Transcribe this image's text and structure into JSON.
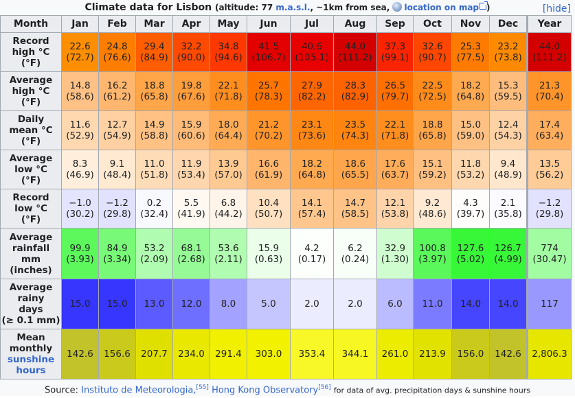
{
  "caption": {
    "title": "Climate data for Lisbon",
    "open_paren": "(",
    "altitude_label": "altitude: 77",
    "masl": "m.a.s.l.",
    "distance": ", ~1km from sea,",
    "map_link": "location on map",
    "close_paren": ")",
    "hide": "[hide]"
  },
  "header": {
    "month": "Month",
    "months": [
      "Jan",
      "Feb",
      "Mar",
      "Apr",
      "May",
      "Jun",
      "Jul",
      "Aug",
      "Sep",
      "Oct",
      "Nov",
      "Dec"
    ],
    "year": "Year"
  },
  "rows": [
    {
      "label_lines": [
        "Record",
        "high °C",
        "(°F)"
      ],
      "cells": [
        {
          "c": "22.6",
          "f": "(72.7)",
          "bg": "#ff8e00"
        },
        {
          "c": "24.8",
          "f": "(76.6)",
          "bg": "#ff7e00"
        },
        {
          "c": "29.4",
          "f": "(84.9)",
          "bg": "#ff5e00"
        },
        {
          "c": "32.2",
          "f": "(90.0)",
          "bg": "#ff4a00"
        },
        {
          "c": "34.8",
          "f": "(94.6)",
          "bg": "#ff3800"
        },
        {
          "c": "41.5",
          "f": "(106.7)",
          "bg": "#e20000"
        },
        {
          "c": "40.6",
          "f": "(105.1)",
          "bg": "#e80000"
        },
        {
          "c": "44.0",
          "f": "(111.2)",
          "bg": "#d40000"
        },
        {
          "c": "37.3",
          "f": "(99.1)",
          "bg": "#fb2400"
        },
        {
          "c": "32.6",
          "f": "(90.7)",
          "bg": "#ff4700"
        },
        {
          "c": "25.3",
          "f": "(77.5)",
          "bg": "#ff7b00"
        },
        {
          "c": "23.2",
          "f": "(73.8)",
          "bg": "#ff8a00"
        },
        {
          "c": "44.0",
          "f": "(111.2)",
          "bg": "#d40000"
        }
      ]
    },
    {
      "label_lines": [
        "Average",
        "high °C",
        "(°F)"
      ],
      "cells": [
        {
          "c": "14.8",
          "f": "(58.6)",
          "bg": "#ffc185"
        },
        {
          "c": "16.2",
          "f": "(61.2)",
          "bg": "#ffb770"
        },
        {
          "c": "18.8",
          "f": "(65.8)",
          "bg": "#ffa54a"
        },
        {
          "c": "19.8",
          "f": "(67.6)",
          "bg": "#ff9e3b"
        },
        {
          "c": "22.1",
          "f": "(71.8)",
          "bg": "#ff8e1f"
        },
        {
          "c": "25.7",
          "f": "(78.3)",
          "bg": "#ff7500"
        },
        {
          "c": "27.9",
          "f": "(82.2)",
          "bg": "#ff6600"
        },
        {
          "c": "28.3",
          "f": "(82.9)",
          "bg": "#ff6300"
        },
        {
          "c": "26.5",
          "f": "(79.7)",
          "bg": "#ff7000"
        },
        {
          "c": "22.5",
          "f": "(72.5)",
          "bg": "#ff8c1a"
        },
        {
          "c": "18.2",
          "f": "(64.8)",
          "bg": "#ffa951"
        },
        {
          "c": "15.3",
          "f": "(59.5)",
          "bg": "#ffbd7d"
        },
        {
          "c": "21.3",
          "f": "(70.4)",
          "bg": "#ff942a"
        }
      ]
    },
    {
      "label_lines": [
        "Daily",
        "mean °C",
        "(°F)"
      ],
      "cells": [
        {
          "c": "11.6",
          "f": "(52.9)",
          "bg": "#ffd8b0"
        },
        {
          "c": "12.7",
          "f": "(54.9)",
          "bg": "#ffd0a2"
        },
        {
          "c": "14.9",
          "f": "(58.8)",
          "bg": "#ffc284"
        },
        {
          "c": "15.9",
          "f": "(60.6)",
          "bg": "#ffbb77"
        },
        {
          "c": "18.0",
          "f": "(64.4)",
          "bg": "#ffab55"
        },
        {
          "c": "21.2",
          "f": "(70.2)",
          "bg": "#ff952b"
        },
        {
          "c": "23.1",
          "f": "(73.6)",
          "bg": "#ff8714"
        },
        {
          "c": "23.5",
          "f": "(74.3)",
          "bg": "#ff8510"
        },
        {
          "c": "22.1",
          "f": "(71.8)",
          "bg": "#ff8e1f"
        },
        {
          "c": "18.8",
          "f": "(65.8)",
          "bg": "#ffa54a"
        },
        {
          "c": "15.0",
          "f": "(59.0)",
          "bg": "#ffc183"
        },
        {
          "c": "12.4",
          "f": "(54.3)",
          "bg": "#ffd2a6"
        },
        {
          "c": "17.4",
          "f": "(63.4)",
          "bg": "#ffae5d"
        }
      ]
    },
    {
      "label_lines": [
        "Average",
        "low °C",
        "(°F)"
      ],
      "cells": [
        {
          "c": "8.3",
          "f": "(46.9)",
          "bg": "#ffeedb"
        },
        {
          "c": "9.1",
          "f": "(48.4)",
          "bg": "#ffe9d1"
        },
        {
          "c": "11.0",
          "f": "(51.8)",
          "bg": "#ffdcb8"
        },
        {
          "c": "11.9",
          "f": "(53.4)",
          "bg": "#ffd6ad"
        },
        {
          "c": "13.9",
          "f": "(57.0)",
          "bg": "#ffc992"
        },
        {
          "c": "16.6",
          "f": "(61.9)",
          "bg": "#ffb56c"
        },
        {
          "c": "18.2",
          "f": "(64.8)",
          "bg": "#ffa951"
        },
        {
          "c": "18.6",
          "f": "(65.5)",
          "bg": "#ffa64c"
        },
        {
          "c": "17.6",
          "f": "(63.7)",
          "bg": "#ffad5a"
        },
        {
          "c": "15.1",
          "f": "(59.2)",
          "bg": "#ffc081"
        },
        {
          "c": "11.8",
          "f": "(53.2)",
          "bg": "#ffd7ae"
        },
        {
          "c": "9.4",
          "f": "(48.9)",
          "bg": "#ffe7cd"
        },
        {
          "c": "13.5",
          "f": "(56.2)",
          "bg": "#ffcb97"
        }
      ]
    },
    {
      "label_lines": [
        "Record",
        "low °C",
        "(°F)"
      ],
      "cells": [
        {
          "c": "−1.0",
          "f": "(30.2)",
          "bg": "#e4e4ff"
        },
        {
          "c": "−1.2",
          "f": "(29.8)",
          "bg": "#e2e2ff"
        },
        {
          "c": "0.2",
          "f": "(32.4)",
          "bg": "#f8f8ff"
        },
        {
          "c": "5.5",
          "f": "(41.9)",
          "bg": "#fff9f2"
        },
        {
          "c": "6.8",
          "f": "(44.2)",
          "bg": "#fff4e9"
        },
        {
          "c": "10.4",
          "f": "(50.7)",
          "bg": "#ffe0c0"
        },
        {
          "c": "14.1",
          "f": "(57.4)",
          "bg": "#ffc78e"
        },
        {
          "c": "14.7",
          "f": "(58.5)",
          "bg": "#ffc387"
        },
        {
          "c": "12.1",
          "f": "(53.8)",
          "bg": "#ffd4aa"
        },
        {
          "c": "9.2",
          "f": "(48.6)",
          "bg": "#ffe9d2"
        },
        {
          "c": "4.3",
          "f": "(39.7)",
          "bg": "#fffdfb"
        },
        {
          "c": "2.1",
          "f": "(35.8)",
          "bg": "#fbfbff"
        },
        {
          "c": "−1.2",
          "f": "(29.8)",
          "bg": "#e2e2ff"
        }
      ]
    },
    {
      "label_lines": [
        "Average",
        "rainfall",
        "mm",
        "(inches)"
      ],
      "cells": [
        {
          "c": "99.9",
          "f": "(3.93)",
          "bg": "#5cf85c"
        },
        {
          "c": "84.9",
          "f": "(3.34)",
          "bg": "#78fa78"
        },
        {
          "c": "53.2",
          "f": "(2.09)",
          "bg": "#b0fcb0"
        },
        {
          "c": "68.1",
          "f": "(2.68)",
          "bg": "#96fb96"
        },
        {
          "c": "53.6",
          "f": "(2.11)",
          "bg": "#b0fcb0"
        },
        {
          "c": "15.9",
          "f": "(0.63)",
          "bg": "#eafeea"
        },
        {
          "c": "4.2",
          "f": "(0.17)",
          "bg": "#fcfffc"
        },
        {
          "c": "6.2",
          "f": "(0.24)",
          "bg": "#f8fef8"
        },
        {
          "c": "32.9",
          "f": "(1.30)",
          "bg": "#d0fdd0"
        },
        {
          "c": "100.8",
          "f": "(3.97)",
          "bg": "#5af85a"
        },
        {
          "c": "127.6",
          "f": "(5.02)",
          "bg": "#38f638"
        },
        {
          "c": "126.7",
          "f": "(4.99)",
          "bg": "#38f638"
        },
        {
          "c": "774",
          "f": "(30.47)",
          "bg": "#a2fca2"
        }
      ]
    },
    {
      "label_lines": [
        "Average",
        "rainy",
        "days",
        "(≥ 0.1 mm)"
      ],
      "cells": [
        {
          "c": "15.0",
          "bg": "#3636ff"
        },
        {
          "c": "15.0",
          "bg": "#3636ff"
        },
        {
          "c": "13.0",
          "bg": "#5b5bff"
        },
        {
          "c": "12.0",
          "bg": "#6e6eff"
        },
        {
          "c": "8.0",
          "bg": "#a3a3ff"
        },
        {
          "c": "5.0",
          "bg": "#c6c6ff"
        },
        {
          "c": "2.0",
          "bg": "#ececff"
        },
        {
          "c": "2.0",
          "bg": "#ececff"
        },
        {
          "c": "6.0",
          "bg": "#bbbbff"
        },
        {
          "c": "11.0",
          "bg": "#7b7bff"
        },
        {
          "c": "14.0",
          "bg": "#4646ff"
        },
        {
          "c": "14.0",
          "bg": "#4646ff"
        },
        {
          "c": "117",
          "bg": "#9898ff"
        }
      ]
    },
    {
      "label_lines": [
        "Mean",
        "monthly"
      ],
      "label_link_lines": [
        "sunshine",
        "hours"
      ],
      "cells": [
        {
          "c": "142.6",
          "bg": "#c2c22a"
        },
        {
          "c": "156.6",
          "bg": "#caca1c"
        },
        {
          "c": "207.7",
          "bg": "#e0e000"
        },
        {
          "c": "234.0",
          "bg": "#e8e800"
        },
        {
          "c": "291.4",
          "bg": "#f0f000"
        },
        {
          "c": "303.0",
          "bg": "#f2f200"
        },
        {
          "c": "353.4",
          "bg": "#f8f828"
        },
        {
          "c": "344.1",
          "bg": "#f7f723"
        },
        {
          "c": "261.0",
          "bg": "#ecec00"
        },
        {
          "c": "213.9",
          "bg": "#e2e200"
        },
        {
          "c": "156.0",
          "bg": "#caca1c"
        },
        {
          "c": "142.6",
          "bg": "#c2c22a"
        },
        {
          "c": "2,806.3",
          "bg": "#e6e600"
        }
      ]
    }
  ],
  "source": {
    "prefix": "Source:",
    "link1": "Instituto de Meteorologia,",
    "ref1": "[55]",
    "link2": "Hong Kong Observatory",
    "ref2": "[56]",
    "suffix": "for data of avg. precipitation days & sunshine hours"
  }
}
